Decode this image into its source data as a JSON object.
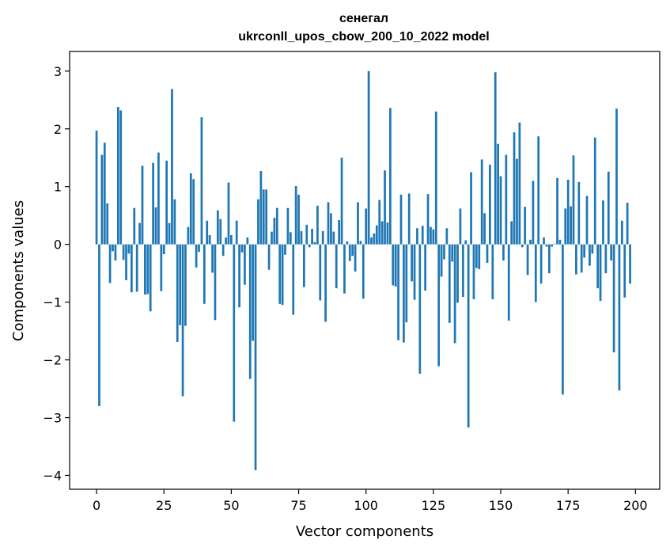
{
  "chart_data": {
    "type": "bar",
    "title": "сенегал",
    "subtitle": "ukrconll_upos_cbow_200_10_2022 model",
    "xlabel": "Vector components",
    "ylabel": "Components values",
    "xlim": [
      -10,
      209
    ],
    "ylim": [
      -4.24,
      3.34
    ],
    "xticks": [
      0,
      25,
      50,
      75,
      100,
      125,
      150,
      175,
      200
    ],
    "yticks": [
      -4,
      -3,
      -2,
      -1,
      0,
      1,
      2,
      3
    ],
    "bar_color": "#1f77b4",
    "grid": false,
    "values": [
      1.97,
      -2.8,
      1.55,
      1.76,
      0.71,
      -0.67,
      -0.12,
      -0.28,
      2.38,
      2.32,
      -0.27,
      -0.62,
      -0.16,
      -0.83,
      0.63,
      -0.82,
      0.37,
      1.36,
      -0.87,
      -0.86,
      -1.16,
      1.41,
      0.64,
      1.59,
      -0.81,
      -0.17,
      1.45,
      0.37,
      2.69,
      0.78,
      -1.69,
      -1.4,
      -2.63,
      -1.41,
      0.3,
      1.23,
      1.13,
      -0.4,
      -0.13,
      2.2,
      -1.03,
      0.41,
      0.16,
      -0.49,
      -1.31,
      0.59,
      0.44,
      -0.2,
      0.12,
      1.07,
      0.16,
      -3.07,
      0.41,
      -1.09,
      -0.14,
      -0.7,
      0.12,
      -2.33,
      -1.67,
      -3.91,
      0.78,
      1.27,
      0.95,
      0.95,
      -0.44,
      0.22,
      0.46,
      0.63,
      -1.03,
      -1.05,
      -0.18,
      0.63,
      0.21,
      -1.22,
      1.01,
      0.86,
      0.23,
      -0.74,
      0.34,
      -0.05,
      0.27,
      0.04,
      0.67,
      -0.97,
      0.23,
      -1.34,
      0.73,
      0.54,
      0.22,
      -0.76,
      0.42,
      1.5,
      -0.85,
      0.05,
      -0.29,
      -0.2,
      -0.47,
      0.73,
      0.06,
      -0.94,
      0.62,
      3.0,
      0.12,
      0.19,
      0.33,
      0.77,
      0.4,
      1.28,
      0.38,
      2.36,
      -0.71,
      -0.73,
      -1.66,
      0.86,
      -1.7,
      -1.35,
      0.88,
      -0.64,
      -0.96,
      0.28,
      -2.24,
      0.32,
      -0.8,
      0.87,
      0.3,
      0.26,
      2.3,
      -2.11,
      -0.56,
      -0.26,
      0.28,
      -1.36,
      -0.3,
      -1.71,
      -1.01,
      0.62,
      -0.91,
      0.07,
      -3.17,
      1.25,
      -0.95,
      -0.41,
      -0.43,
      1.47,
      0.54,
      -0.32,
      1.38,
      -0.95,
      2.98,
      1.74,
      1.18,
      -0.28,
      1.55,
      -1.32,
      0.4,
      1.94,
      1.48,
      2.11,
      -0.05,
      0.65,
      -0.53,
      0.08,
      1.1,
      -1.0,
      1.87,
      -0.68,
      0.12,
      -0.04,
      -0.5,
      -0.04,
      0.01,
      1.15,
      0.08,
      -2.6,
      0.62,
      1.12,
      0.66,
      1.54,
      -0.52,
      1.08,
      -0.49,
      -0.23,
      0.84,
      -0.37,
      -0.16,
      1.85,
      -0.76,
      -0.98,
      0.76,
      -0.5,
      1.26,
      -0.28,
      -1.87,
      2.35,
      -2.53,
      0.41,
      -0.92,
      0.72,
      -0.68
    ]
  }
}
